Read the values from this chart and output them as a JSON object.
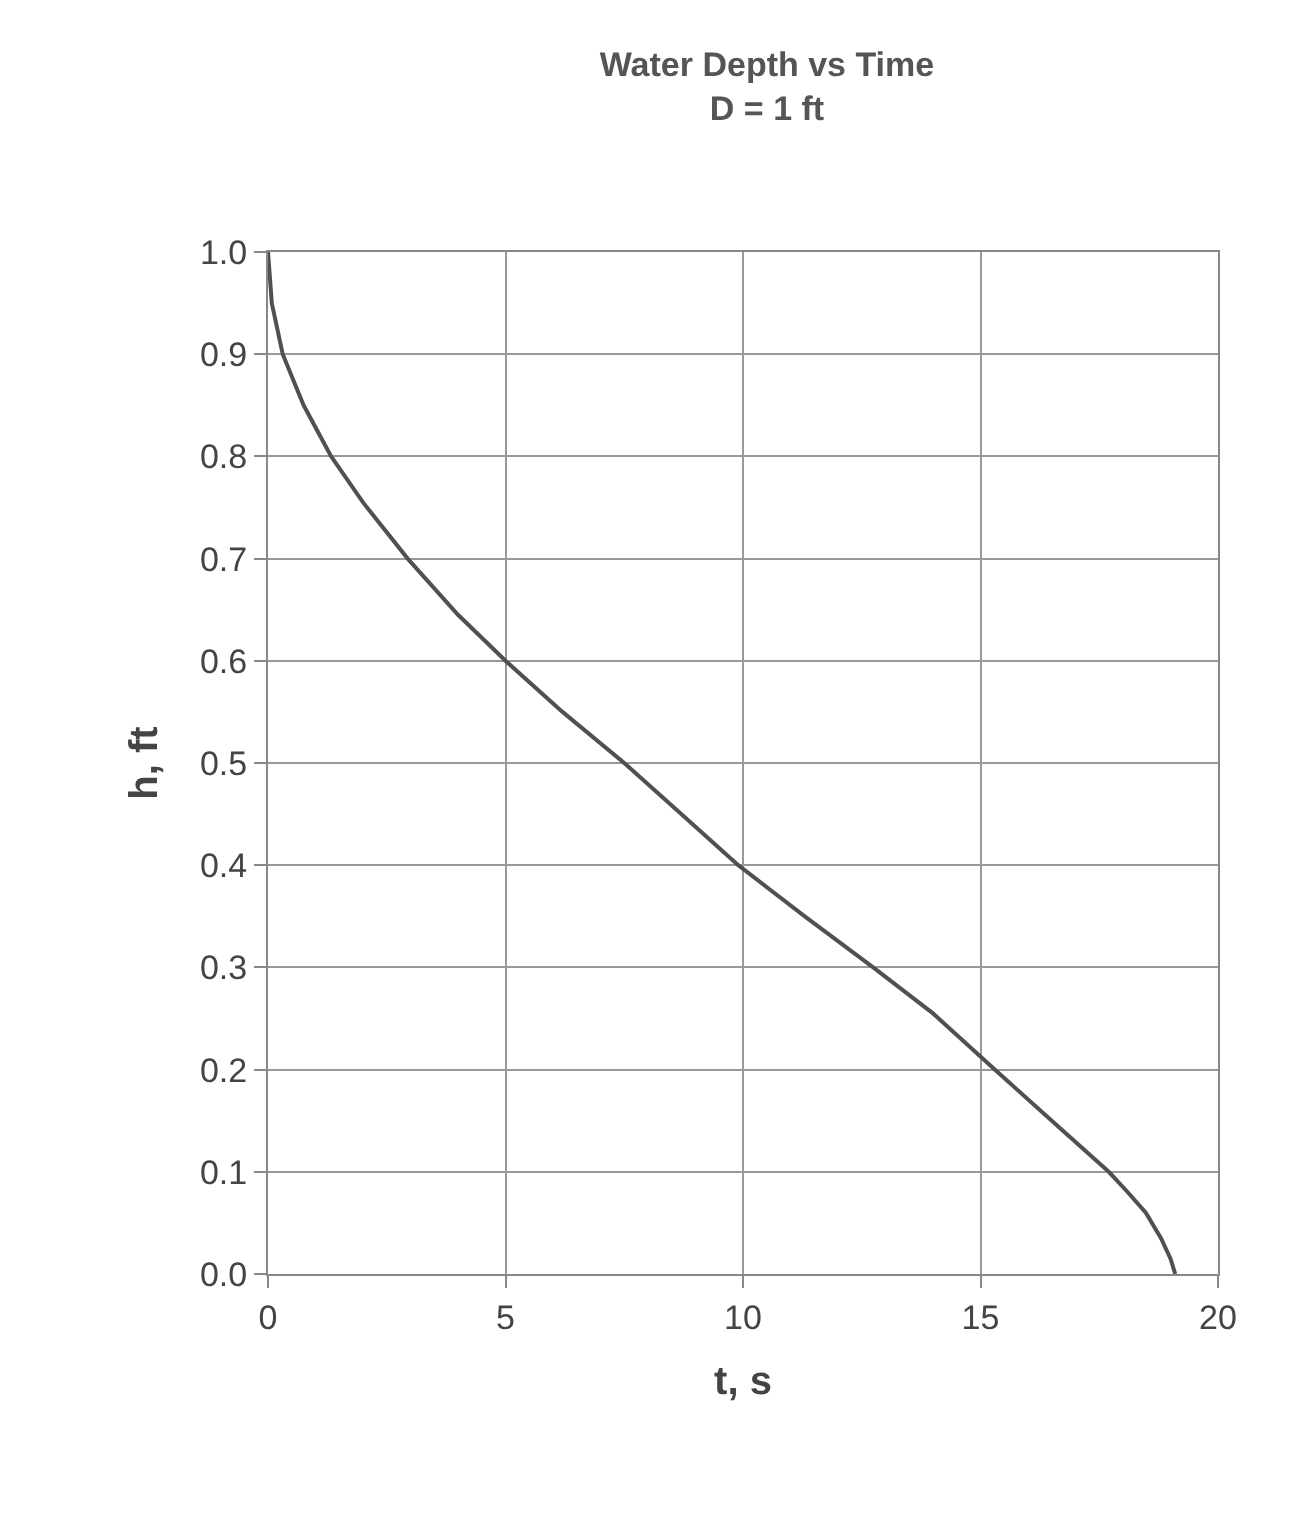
{
  "chart_data": {
    "type": "line",
    "title": "Water Depth vs Time",
    "subtitle": "D = 1 ft",
    "xlabel": "t, s",
    "ylabel": "h, ft",
    "x": [
      0,
      0.08,
      0.31,
      0.75,
      1.33,
      2.0,
      2.94,
      4.0,
      5.0,
      6.2,
      7.5,
      8.7,
      9.9,
      11.3,
      12.74,
      14.0,
      15.3,
      16.5,
      17.7,
      18.1,
      18.48,
      18.8,
      19.0,
      19.1
    ],
    "series": [
      {
        "color": "#505050",
        "values": [
          1.0,
          0.95,
          0.9,
          0.85,
          0.8,
          0.755,
          0.7,
          0.645,
          0.6,
          0.55,
          0.5,
          0.45,
          0.4,
          0.35,
          0.3,
          0.255,
          0.2,
          0.15,
          0.1,
          0.08,
          0.06,
          0.035,
          0.015,
          0.0
        ]
      }
    ],
    "xlim": [
      0,
      20
    ],
    "xticks": [
      0,
      5,
      10,
      15,
      20
    ],
    "ylim": [
      0,
      1
    ],
    "yticks": [
      {
        "value": 0,
        "label": "0.0"
      },
      {
        "value": 0.1,
        "label": "0.1"
      },
      {
        "value": 0.2,
        "label": "0.2"
      },
      {
        "value": 0.3,
        "label": "0.3"
      },
      {
        "value": 0.4,
        "label": "0.4"
      },
      {
        "value": 0.5,
        "label": "0.5"
      },
      {
        "value": 0.6,
        "label": "0.6"
      },
      {
        "value": 0.7,
        "label": "0.7"
      },
      {
        "value": 0.8,
        "label": "0.8"
      },
      {
        "value": 0.9,
        "label": "0.9"
      },
      {
        "value": 1,
        "label": "1.0"
      }
    ],
    "grid": true,
    "marker": "none",
    "line_style": "solid"
  }
}
